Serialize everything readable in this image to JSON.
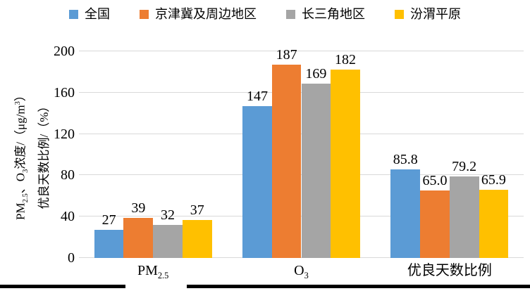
{
  "chart_data": {
    "type": "bar",
    "title": "",
    "legend_position": "top",
    "grid": true,
    "gridline_color": "#D9D9D9",
    "background": "#FFFFFF",
    "y_axis": {
      "min": 0,
      "max": 200,
      "step": 40,
      "tick_labels": [
        "0",
        "40",
        "80",
        "120",
        "160",
        "200"
      ]
    },
    "y_title_lines": [
      {
        "segments": [
          {
            "t": "PM"
          },
          {
            "t": "2.5",
            "sub": true
          },
          {
            "t": "、O"
          },
          {
            "t": "3",
            "sub": true
          },
          {
            "t": "浓度/（μg/m"
          },
          {
            "t": "3",
            "sup": true
          },
          {
            "t": "）"
          }
        ]
      },
      {
        "segments": [
          {
            "t": "优良天数比例/（%）"
          }
        ]
      }
    ],
    "categories": [
      {
        "segments": [
          {
            "t": "PM"
          },
          {
            "t": "2.5",
            "sub": true
          }
        ]
      },
      {
        "segments": [
          {
            "t": "O"
          },
          {
            "t": "3",
            "sub": true
          }
        ]
      },
      {
        "segments": [
          {
            "t": "优良天数比例"
          }
        ]
      }
    ],
    "series": [
      {
        "name": "全国",
        "color": "#5B9BD5",
        "values": [
          27,
          147,
          85.8
        ],
        "labels": [
          "27",
          "147",
          "85.8"
        ]
      },
      {
        "name": "京津冀及周边地区",
        "color": "#ED7D31",
        "values": [
          39,
          187,
          65.0
        ],
        "labels": [
          "39",
          "187",
          "65.0"
        ]
      },
      {
        "name": "长三角地区",
        "color": "#A5A5A5",
        "values": [
          32,
          169,
          79.2
        ],
        "labels": [
          "32",
          "169",
          "79.2"
        ]
      },
      {
        "name": "汾渭平原",
        "color": "#FFC000",
        "values": [
          37,
          182,
          65.9
        ],
        "labels": [
          "37",
          "182",
          "65.9"
        ]
      }
    ]
  }
}
